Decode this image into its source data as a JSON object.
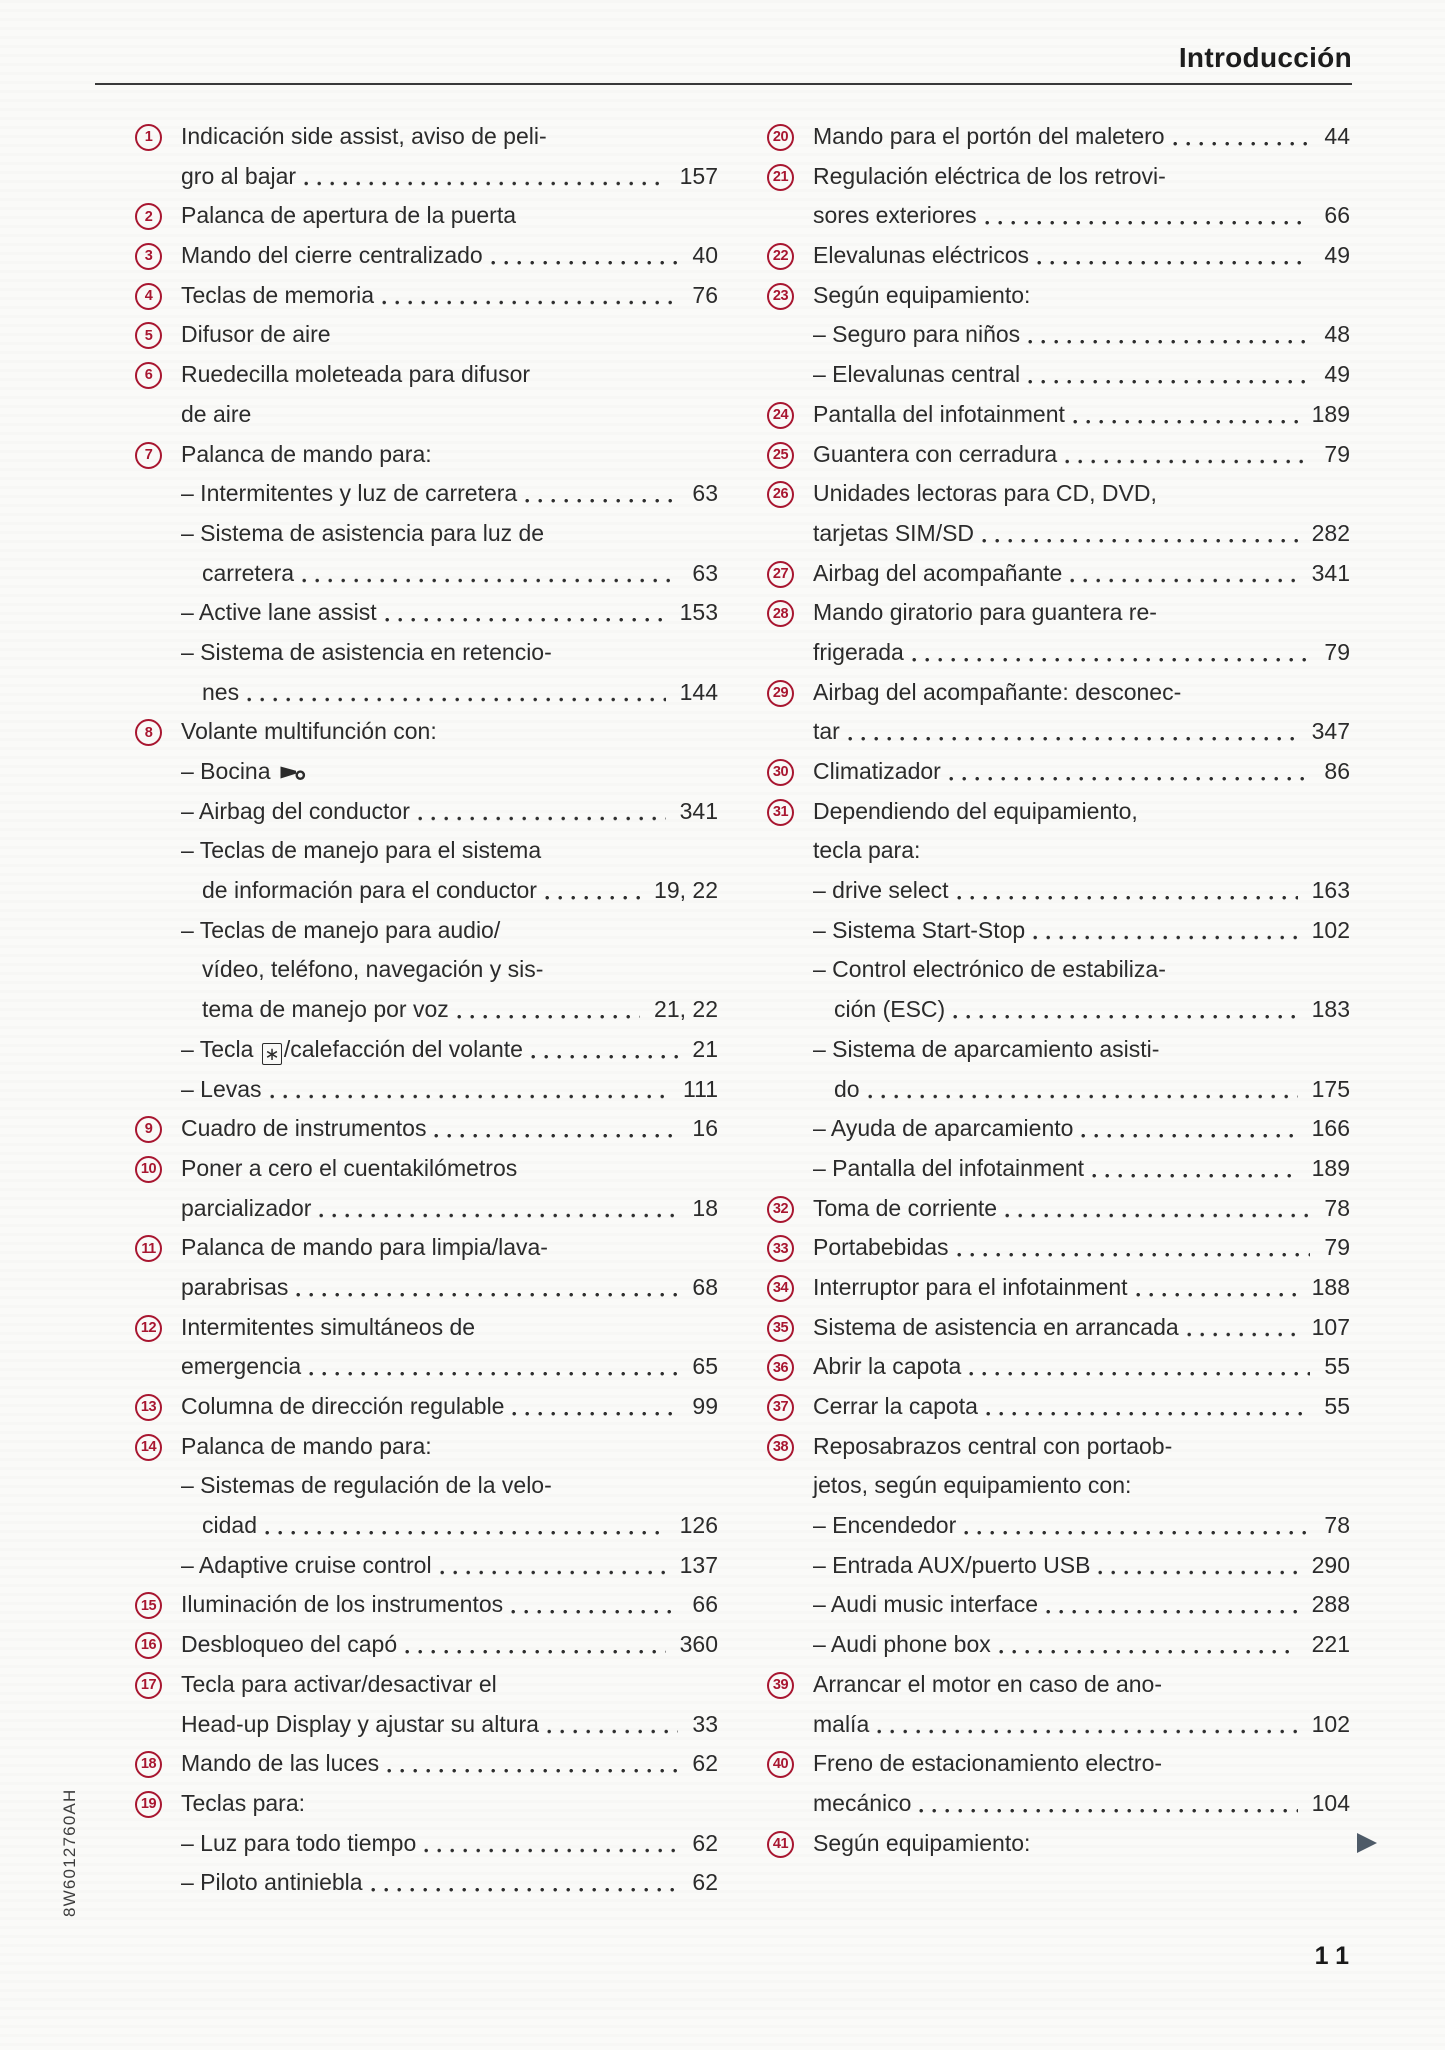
{
  "page": {
    "header_title": "Introducción",
    "page_number": "11",
    "doc_code": "8W6012760AH"
  },
  "colors": {
    "accent": "#a81630",
    "arrow": "#4e5b68",
    "text": "#2b2b2b"
  },
  "icons": {
    "horn": "horn-icon",
    "asterisk_key": "asterisk-key-icon",
    "continuation": "continuation-arrow-icon"
  },
  "columns": {
    "left": {
      "rows": [
        {
          "t": "item",
          "n": "1",
          "text": "Indicación side assist, aviso de peli-",
          "page": ""
        },
        {
          "t": "cont",
          "text": "gro al bajar",
          "page": "157"
        },
        {
          "t": "item",
          "n": "2",
          "text": "Palanca de apertura de la puerta",
          "page": ""
        },
        {
          "t": "item",
          "n": "3",
          "text": "Mando del cierre centralizado",
          "page": "40"
        },
        {
          "t": "item",
          "n": "4",
          "text": "Teclas de memoria",
          "page": "76"
        },
        {
          "t": "item",
          "n": "5",
          "text": "Difusor de aire",
          "page": ""
        },
        {
          "t": "item",
          "n": "6",
          "text": "Ruedecilla moleteada para difusor",
          "page": ""
        },
        {
          "t": "cont",
          "text": "de aire",
          "page": ""
        },
        {
          "t": "item",
          "n": "7",
          "text": "Palanca de mando para:",
          "page": ""
        },
        {
          "t": "sub",
          "text": "– Intermitentes y luz de carretera",
          "page": "63"
        },
        {
          "t": "sub",
          "text": "– Sistema de asistencia para luz de",
          "page": ""
        },
        {
          "t": "subcont",
          "text": "carretera",
          "page": "63"
        },
        {
          "t": "sub",
          "text": "– Active lane assist",
          "page": "153"
        },
        {
          "t": "sub",
          "text": "– Sistema de asistencia en retencio-",
          "page": ""
        },
        {
          "t": "subcont",
          "text": "nes",
          "page": "144"
        },
        {
          "t": "item",
          "n": "8",
          "text": "Volante multifunción con:",
          "page": ""
        },
        {
          "t": "sub",
          "text": "– Bocina",
          "icon": "horn",
          "page": ""
        },
        {
          "t": "sub",
          "text": "– Airbag del conductor",
          "page": "341"
        },
        {
          "t": "sub",
          "text": "– Teclas de manejo para el sistema",
          "page": ""
        },
        {
          "t": "subcont",
          "text": "de información para el conductor",
          "page": "19, 22"
        },
        {
          "t": "sub",
          "text": "– Teclas de manejo para audio/",
          "page": ""
        },
        {
          "t": "subcont",
          "text": "vídeo, teléfono, navegación y sis-",
          "page": ""
        },
        {
          "t": "subcont",
          "text": "tema de manejo por voz",
          "page": "21, 22"
        },
        {
          "t": "sub",
          "pre": "– Tecla ",
          "key": "∗",
          "post": "/calefacción del volante",
          "page": "21"
        },
        {
          "t": "sub",
          "text": "– Levas",
          "page": "111"
        },
        {
          "t": "item",
          "n": "9",
          "text": "Cuadro de instrumentos",
          "page": "16"
        },
        {
          "t": "item",
          "n": "10",
          "text": "Poner a cero el cuentakilómetros",
          "page": ""
        },
        {
          "t": "cont",
          "text": "parcializador",
          "page": "18"
        },
        {
          "t": "item",
          "n": "11",
          "text": "Palanca de mando para limpia/lava-",
          "page": ""
        },
        {
          "t": "cont",
          "text": "parabrisas",
          "page": "68"
        },
        {
          "t": "item",
          "n": "12",
          "text": "Intermitentes simultáneos de",
          "page": ""
        },
        {
          "t": "cont",
          "text": "emergencia",
          "page": "65"
        },
        {
          "t": "item",
          "n": "13",
          "text": "Columna de dirección regulable",
          "page": "99"
        },
        {
          "t": "item",
          "n": "14",
          "text": "Palanca de mando para:",
          "page": ""
        },
        {
          "t": "sub",
          "text": "– Sistemas de regulación de la velo-",
          "page": ""
        },
        {
          "t": "subcont",
          "text": "cidad",
          "page": "126"
        },
        {
          "t": "sub",
          "text": "– Adaptive cruise control",
          "page": "137"
        },
        {
          "t": "item",
          "n": "15",
          "text": "Iluminación de los instrumentos",
          "page": "66"
        },
        {
          "t": "item",
          "n": "16",
          "text": "Desbloqueo del capó",
          "page": "360"
        },
        {
          "t": "item",
          "n": "17",
          "text": "Tecla para activar/desactivar el",
          "page": ""
        },
        {
          "t": "cont",
          "text": "Head-up Display y ajustar su altura",
          "page": "33"
        },
        {
          "t": "item",
          "n": "18",
          "text": "Mando de las luces",
          "page": "62"
        },
        {
          "t": "item",
          "n": "19",
          "text": "Teclas para:",
          "page": ""
        },
        {
          "t": "sub",
          "text": "– Luz para todo tiempo",
          "page": "62"
        },
        {
          "t": "sub",
          "text": "– Piloto antiniebla",
          "page": "62"
        }
      ]
    },
    "right": {
      "rows": [
        {
          "t": "item",
          "n": "20",
          "text": "Mando para el portón del maletero",
          "page": "44"
        },
        {
          "t": "item",
          "n": "21",
          "text": "Regulación eléctrica de los retrovi-",
          "page": ""
        },
        {
          "t": "cont",
          "text": "sores exteriores",
          "page": "66"
        },
        {
          "t": "item",
          "n": "22",
          "text": "Elevalunas eléctricos",
          "page": "49"
        },
        {
          "t": "item",
          "n": "23",
          "text": "Según equipamiento:",
          "page": ""
        },
        {
          "t": "sub",
          "text": "– Seguro para niños",
          "page": "48"
        },
        {
          "t": "sub",
          "text": "– Elevalunas central",
          "page": "49"
        },
        {
          "t": "item",
          "n": "24",
          "text": "Pantalla del infotainment",
          "page": "189"
        },
        {
          "t": "item",
          "n": "25",
          "text": "Guantera con cerradura",
          "page": "79"
        },
        {
          "t": "item",
          "n": "26",
          "text": "Unidades lectoras para CD, DVD,",
          "page": ""
        },
        {
          "t": "cont",
          "text": "tarjetas SIM/SD",
          "page": "282"
        },
        {
          "t": "item",
          "n": "27",
          "text": "Airbag del acompañante",
          "page": "341"
        },
        {
          "t": "item",
          "n": "28",
          "text": "Mando giratorio para guantera re-",
          "page": ""
        },
        {
          "t": "cont",
          "text": "frigerada",
          "page": "79"
        },
        {
          "t": "item",
          "n": "29",
          "text": "Airbag del acompañante: desconec-",
          "page": ""
        },
        {
          "t": "cont",
          "text": "tar",
          "page": "347"
        },
        {
          "t": "item",
          "n": "30",
          "text": "Climatizador",
          "page": "86"
        },
        {
          "t": "item",
          "n": "31",
          "text": "Dependiendo del equipamiento,",
          "page": ""
        },
        {
          "t": "cont",
          "text": "tecla para:",
          "page": ""
        },
        {
          "t": "sub",
          "text": "– drive select",
          "page": "163"
        },
        {
          "t": "sub",
          "text": "– Sistema Start-Stop",
          "page": "102"
        },
        {
          "t": "sub",
          "text": "– Control electrónico de estabiliza-",
          "page": ""
        },
        {
          "t": "subcont",
          "text": "ción (ESC)",
          "page": "183"
        },
        {
          "t": "sub",
          "text": "– Sistema de aparcamiento asisti-",
          "page": ""
        },
        {
          "t": "subcont",
          "text": "do",
          "page": "175"
        },
        {
          "t": "sub",
          "text": "– Ayuda de aparcamiento",
          "page": "166"
        },
        {
          "t": "sub",
          "text": "– Pantalla del infotainment",
          "page": "189"
        },
        {
          "t": "item",
          "n": "32",
          "text": "Toma de corriente",
          "page": "78"
        },
        {
          "t": "item",
          "n": "33",
          "text": "Portabebidas",
          "page": "79"
        },
        {
          "t": "item",
          "n": "34",
          "text": "Interruptor para el infotainment",
          "page": "188"
        },
        {
          "t": "item",
          "n": "35",
          "text": "Sistema de asistencia en arrancada",
          "page": "107"
        },
        {
          "t": "item",
          "n": "36",
          "text": "Abrir la capota",
          "page": "55"
        },
        {
          "t": "item",
          "n": "37",
          "text": "Cerrar la capota",
          "page": "55"
        },
        {
          "t": "item",
          "n": "38",
          "text": "Reposabrazos central con portaob-",
          "page": ""
        },
        {
          "t": "cont",
          "text": "jetos, según equipamiento con:",
          "page": ""
        },
        {
          "t": "sub",
          "text": "– Encendedor",
          "page": "78"
        },
        {
          "t": "sub",
          "text": "– Entrada AUX/puerto USB",
          "page": "290"
        },
        {
          "t": "sub",
          "text": "– Audi music interface",
          "page": "288"
        },
        {
          "t": "sub",
          "text": "– Audi phone box",
          "page": "221"
        },
        {
          "t": "item",
          "n": "39",
          "text": "Arrancar el motor en caso de ano-",
          "page": ""
        },
        {
          "t": "cont",
          "text": "malía",
          "page": "102"
        },
        {
          "t": "item",
          "n": "40",
          "text": "Freno de estacionamiento electro-",
          "page": ""
        },
        {
          "t": "cont",
          "text": "mecánico",
          "page": "104"
        },
        {
          "t": "item",
          "n": "41",
          "text": "Según equipamiento:",
          "page": "",
          "marker": "arrow"
        }
      ]
    }
  }
}
